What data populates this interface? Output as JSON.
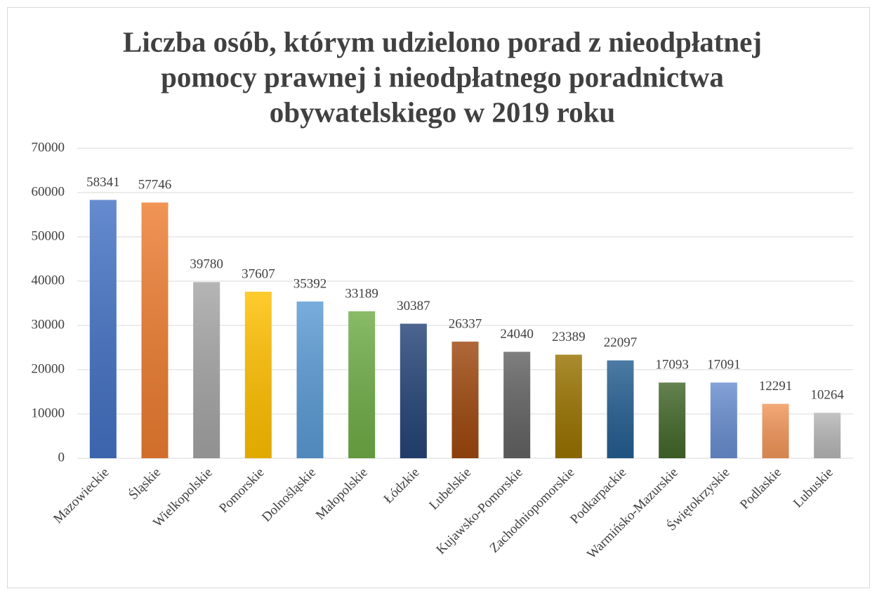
{
  "chart_data": {
    "type": "bar",
    "title": [
      "Liczba osób, którym udzielono porad z nieodpłatnej",
      "pomocy prawnej i nieodpłatnego poradnictwa",
      "obywatelskiego w 2019 roku"
    ],
    "categories": [
      "Mazowieckie",
      "Śląskie",
      "Wielkopolskie",
      "Pomorskie",
      "Dolnośląskie",
      "Małopolskie",
      "Łódzkie",
      "Lubelskie",
      "Kujawsko-Pomorskie",
      "Zachodniopomorskie",
      "Podkarpackie",
      "Warmińsko-Mazurskie",
      "Świętokrzyskie",
      "Podlaskie",
      "Lubuskie"
    ],
    "values": [
      58341,
      57746,
      39780,
      37607,
      35392,
      33189,
      30387,
      26337,
      24040,
      23389,
      22097,
      17093,
      17091,
      12291,
      10264
    ],
    "colors": [
      "#4472c4",
      "#ed7d31",
      "#a5a5a5",
      "#ffc000",
      "#5b9bd5",
      "#70ad47",
      "#264478",
      "#9e480e",
      "#636363",
      "#997300",
      "#255e91",
      "#43682b",
      "#698ed0",
      "#f1975a",
      "#b7b7b7"
    ],
    "ylim": [
      0,
      70000
    ],
    "yticks": [
      0,
      10000,
      20000,
      30000,
      40000,
      50000,
      60000,
      70000
    ],
    "grid": true
  }
}
